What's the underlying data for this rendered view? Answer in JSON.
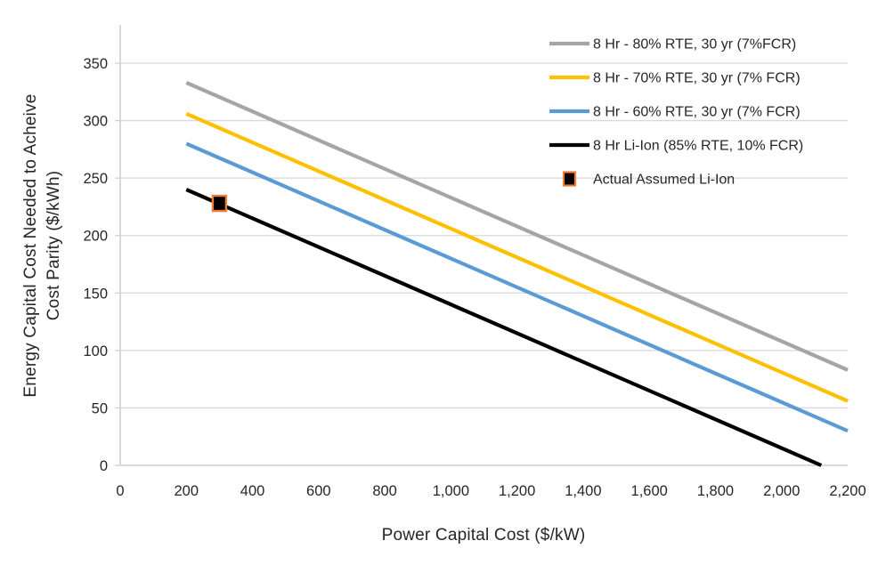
{
  "chart_data": {
    "type": "line",
    "title": "",
    "xlabel": "Power Capital Cost ($/kW)",
    "ylabel": "Energy Capital Cost Needed to Acheive Cost Parity ($/kWh)",
    "ylabel_lines": [
      "Energy Capital Cost Needed to Acheive",
      "Cost Parity ($/kWh)"
    ],
    "xlim": [
      0,
      2200
    ],
    "ylim": [
      0,
      350
    ],
    "x_ticks": [
      0,
      200,
      400,
      600,
      800,
      1000,
      1200,
      1400,
      1600,
      1800,
      2000,
      2200
    ],
    "x_tick_labels": [
      "0",
      "200",
      "400",
      "600",
      "800",
      "1,000",
      "1,200",
      "1,400",
      "1,600",
      "1,800",
      "2,000",
      "2,200"
    ],
    "y_ticks": [
      0,
      50,
      100,
      150,
      200,
      250,
      300,
      350
    ],
    "y_tick_labels": [
      "0",
      "50",
      "100",
      "150",
      "200",
      "250",
      "300",
      "350"
    ],
    "grid": "horizontal",
    "legend_position": "top-right",
    "colors": {
      "axis_line": "#CFCFCF",
      "gridline": "#D9D9D9",
      "text": "#262626",
      "background": "#FFFFFF"
    },
    "series": [
      {
        "name": "8 Hr - 80% RTE, 30 yr (7%FCR)",
        "color": "#A5A5A5",
        "points": [
          [
            200,
            333
          ],
          [
            2200,
            83
          ]
        ]
      },
      {
        "name": "8 Hr - 70% RTE, 30 yr (7% FCR)",
        "color": "#FFC000",
        "points": [
          [
            200,
            306
          ],
          [
            2200,
            56
          ]
        ]
      },
      {
        "name": "8 Hr - 60% RTE, 30 yr (7% FCR)",
        "color": "#5B9BD5",
        "points": [
          [
            200,
            280
          ],
          [
            2200,
            30
          ]
        ]
      },
      {
        "name": "8 Hr Li-Ion (85% RTE, 10% FCR)",
        "color": "#000000",
        "points": [
          [
            200,
            240
          ],
          [
            2120,
            0
          ]
        ]
      }
    ],
    "point_series": [
      {
        "name": "Actual Assumed Li-Ion",
        "marker": "square",
        "fill": "#000000",
        "stroke": "#ED7D31",
        "points": [
          [
            300,
            228
          ]
        ]
      }
    ]
  }
}
